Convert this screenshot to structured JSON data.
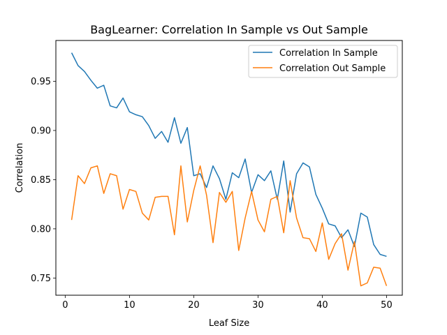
{
  "chart_data": {
    "type": "line",
    "title": "BagLearner: Correlation In Sample vs Out Sample",
    "xlabel": "Leaf Size",
    "ylabel": "Correlation",
    "xlim": [
      -1.45,
      52.45
    ],
    "ylim": [
      0.7325,
      0.9915
    ],
    "xticks": [
      0,
      10,
      20,
      30,
      40,
      50
    ],
    "yticks": [
      0.75,
      0.8,
      0.85,
      0.9,
      0.95
    ],
    "ytick_labels": [
      "0.75",
      "0.80",
      "0.85",
      "0.90",
      "0.95"
    ],
    "grid": false,
    "legend_position": "top-right",
    "x": [
      1,
      2,
      3,
      4,
      5,
      6,
      7,
      8,
      9,
      10,
      11,
      12,
      13,
      14,
      15,
      16,
      17,
      18,
      19,
      20,
      21,
      22,
      23,
      24,
      25,
      26,
      27,
      28,
      29,
      30,
      31,
      32,
      33,
      34,
      35,
      36,
      37,
      38,
      39,
      40,
      41,
      42,
      43,
      44,
      45,
      46,
      47,
      48,
      49,
      50
    ],
    "series": [
      {
        "name": "Correlation In Sample",
        "color": "#1f77b4",
        "values": [
          0.979,
          0.966,
          0.96,
          0.951,
          0.943,
          0.946,
          0.925,
          0.923,
          0.933,
          0.919,
          0.916,
          0.914,
          0.905,
          0.892,
          0.899,
          0.888,
          0.913,
          0.887,
          0.903,
          0.854,
          0.856,
          0.842,
          0.864,
          0.851,
          0.83,
          0.857,
          0.852,
          0.871,
          0.837,
          0.855,
          0.849,
          0.859,
          0.83,
          0.869,
          0.817,
          0.856,
          0.867,
          0.863,
          0.835,
          0.821,
          0.805,
          0.803,
          0.791,
          0.799,
          0.782,
          0.816,
          0.812,
          0.784,
          0.774,
          0.772
        ]
      },
      {
        "name": "Correlation Out Sample",
        "color": "#ff7f0e",
        "values": [
          0.809,
          0.854,
          0.846,
          0.862,
          0.864,
          0.836,
          0.856,
          0.854,
          0.82,
          0.84,
          0.838,
          0.816,
          0.809,
          0.832,
          0.833,
          0.833,
          0.794,
          0.864,
          0.807,
          0.839,
          0.864,
          0.834,
          0.786,
          0.837,
          0.827,
          0.838,
          0.778,
          0.811,
          0.838,
          0.809,
          0.797,
          0.83,
          0.833,
          0.796,
          0.849,
          0.811,
          0.791,
          0.79,
          0.777,
          0.806,
          0.769,
          0.785,
          0.795,
          0.758,
          0.787,
          0.742,
          0.745,
          0.761,
          0.76,
          0.742
        ]
      }
    ]
  }
}
